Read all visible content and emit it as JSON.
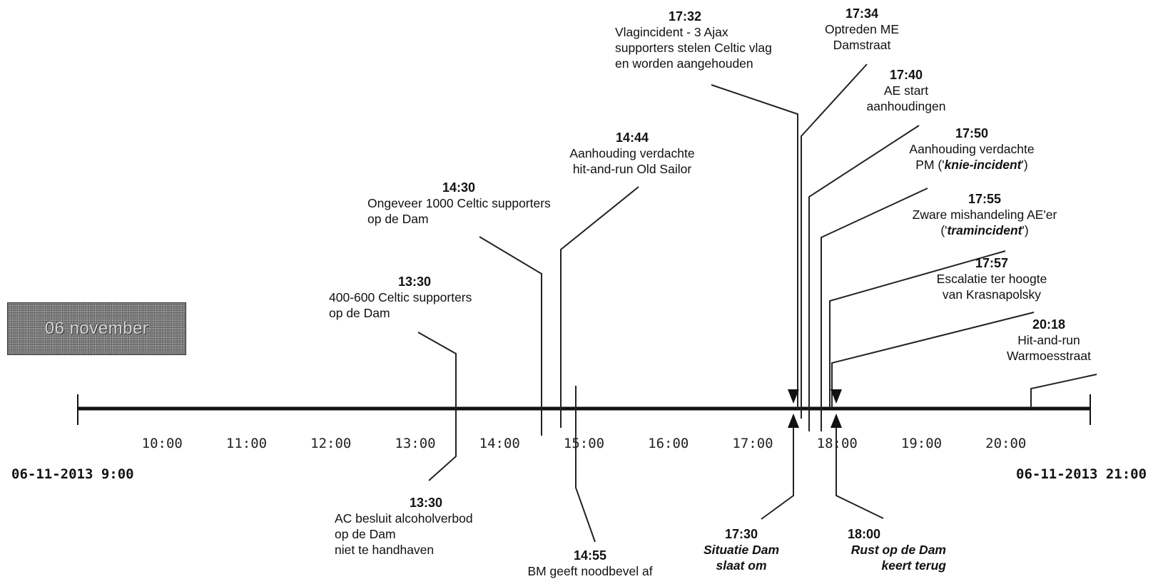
{
  "badge": "06 november",
  "start_label": "06-11-2013  9:00",
  "end_label": "06-11-2013  21:00",
  "axis": {
    "start": "9:00",
    "end": "21:00",
    "ticks": [
      "10:00",
      "11:00",
      "12:00",
      "13:00",
      "14:00",
      "15:00",
      "16:00",
      "17:00",
      "18:00",
      "19:00",
      "20:00"
    ]
  },
  "events_above": [
    {
      "time": "13:30",
      "text": "400-600 Celtic supporters\nop de Dam"
    },
    {
      "time": "14:30",
      "text": "Ongeveer 1000 Celtic supporters\nop de Dam"
    },
    {
      "time": "14:44",
      "text": "Aanhouding verdachte\nhit-and-run Old Sailor"
    },
    {
      "time": "17:32",
      "text": "Vlagincident - 3 Ajax\nsupporters stelen Celtic vlag\nen worden aangehouden"
    },
    {
      "time": "17:34",
      "text": "Optreden ME\nDamstraat"
    },
    {
      "time": "17:40",
      "text": "AE start\naanhoudingen"
    },
    {
      "time": "17:50",
      "text_pre": "Aanhouding verdachte\nPM ('",
      "text_em": "knie-incident",
      "text_post": "')"
    },
    {
      "time": "17:55",
      "text_pre": "Zware mishandeling AE'er\n('",
      "text_em": "tramincident",
      "text_post": "')"
    },
    {
      "time": "17:57",
      "text": "Escalatie ter hoogte\nvan Krasnapolsky"
    },
    {
      "time": "20:18",
      "text": "Hit-and-run\nWarmoesstraat"
    }
  ],
  "events_below": [
    {
      "time": "13:30",
      "text": "AC besluit alcoholverbod\nop de Dam\nniet te handhaven"
    },
    {
      "time": "14:55",
      "text": "BM geeft noodbevel af"
    },
    {
      "time": "17:30",
      "text": "Situatie Dam\nslaat om"
    },
    {
      "time": "18:00",
      "text": "Rust op de Dam\nkeert terug"
    }
  ]
}
